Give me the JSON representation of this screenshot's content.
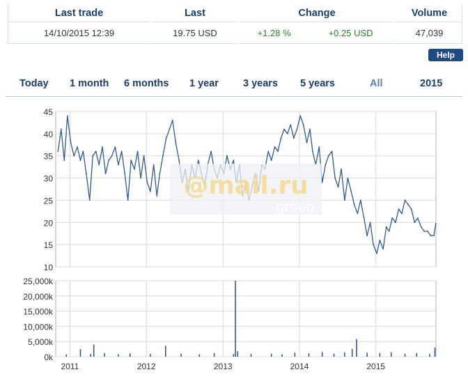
{
  "quote": {
    "headers": {
      "last_trade": "Last trade",
      "last": "Last",
      "change": "Change",
      "volume": "Volume"
    },
    "last_trade": "14/10/2015 12:39",
    "last": "19.75 USD",
    "change_pct": "+1.28 %",
    "change_abs": "+0.25 USD",
    "volume": "47,039"
  },
  "help_label": "Help",
  "periods": [
    "Today",
    "1 month",
    "6 months",
    "1 year",
    "3 years",
    "5 years",
    "All",
    "2015"
  ],
  "active_period": "All",
  "watermark": {
    "brand": "@mail.ru",
    "sub": "group"
  },
  "colors": {
    "line": "#2e5a8c",
    "header": "#1a3d6e",
    "positive": "#1f8a1f",
    "grid": "#d8d8d8"
  },
  "chart_data": [
    {
      "type": "line",
      "title": "",
      "xlabel": "",
      "ylabel": "",
      "x_ticks": [
        "2011",
        "2012",
        "2013",
        "2014",
        "2015"
      ],
      "ylim": [
        10,
        45
      ],
      "y_ticks": [
        "45",
        "40",
        "35",
        "30",
        "25",
        "20",
        "15",
        "10"
      ],
      "grid": true,
      "series": [
        {
          "x": [
            "2010-11-05",
            "2010-11-20",
            "2010-12-05",
            "2010-12-20",
            "2011-01-05",
            "2011-01-20",
            "2011-02-05",
            "2011-02-20",
            "2011-03-05",
            "2011-03-20",
            "2011-04-05",
            "2011-04-20",
            "2011-05-05",
            "2011-05-20",
            "2011-06-05",
            "2011-06-20",
            "2011-07-05",
            "2011-07-20",
            "2011-08-05",
            "2011-08-20",
            "2011-09-05",
            "2011-09-20",
            "2011-10-05",
            "2011-10-20",
            "2011-11-05",
            "2011-11-20",
            "2011-12-05",
            "2011-12-20",
            "2012-01-05",
            "2012-01-20",
            "2012-02-05",
            "2012-02-20",
            "2012-03-05",
            "2012-03-20",
            "2012-04-05",
            "2012-04-20",
            "2012-05-05",
            "2012-05-20",
            "2012-06-05",
            "2012-06-20",
            "2012-07-05",
            "2012-07-20",
            "2012-08-05",
            "2012-08-20",
            "2012-09-05",
            "2012-09-20",
            "2012-10-05",
            "2012-10-20",
            "2012-11-05",
            "2012-11-20",
            "2012-12-05",
            "2012-12-20",
            "2013-01-05",
            "2013-01-20",
            "2013-02-05",
            "2013-02-20",
            "2013-03-05",
            "2013-03-20",
            "2013-04-05",
            "2013-04-20",
            "2013-05-05",
            "2013-05-20",
            "2013-06-05",
            "2013-06-20",
            "2013-07-05",
            "2013-07-20",
            "2013-08-05",
            "2013-08-20",
            "2013-09-05",
            "2013-09-20",
            "2013-10-05",
            "2013-10-20",
            "2013-11-05",
            "2013-11-20",
            "2013-12-05",
            "2013-12-20",
            "2014-01-05",
            "2014-01-20",
            "2014-02-05",
            "2014-02-20",
            "2014-03-05",
            "2014-03-20",
            "2014-04-05",
            "2014-04-20",
            "2014-05-05",
            "2014-05-20",
            "2014-06-05",
            "2014-06-20",
            "2014-07-05",
            "2014-07-20",
            "2014-08-05",
            "2014-08-20",
            "2014-09-05",
            "2014-09-20",
            "2014-10-05",
            "2014-10-20",
            "2014-11-05",
            "2014-11-20",
            "2014-12-05",
            "2014-12-20",
            "2015-01-05",
            "2015-01-20",
            "2015-02-05",
            "2015-02-20",
            "2015-03-05",
            "2015-03-20",
            "2015-04-05",
            "2015-04-20",
            "2015-05-05",
            "2015-05-20",
            "2015-06-05",
            "2015-06-20",
            "2015-07-05",
            "2015-07-20",
            "2015-08-05",
            "2015-08-20",
            "2015-09-05",
            "2015-09-20",
            "2015-10-05",
            "2015-10-14"
          ],
          "values": [
            36,
            41,
            34,
            44,
            38,
            35,
            37,
            34,
            36,
            31,
            25,
            35,
            36,
            33,
            37,
            31,
            34,
            35,
            37,
            33,
            36,
            31,
            25,
            34,
            32,
            36,
            30,
            35,
            29,
            27,
            33,
            26,
            31,
            35,
            39,
            41,
            43,
            38,
            34,
            29,
            32,
            27,
            33,
            30,
            34,
            31,
            28,
            33,
            36,
            32,
            30,
            33,
            31,
            35,
            32,
            34,
            29,
            33,
            26,
            29,
            25,
            28,
            31,
            27,
            33,
            32,
            36,
            34,
            37,
            36,
            39,
            41,
            40,
            42,
            39,
            41,
            44,
            42,
            38,
            41,
            36,
            33,
            37,
            29,
            33,
            35,
            36,
            30,
            28,
            32,
            25,
            30,
            27,
            24,
            22,
            25,
            21,
            17,
            20,
            15,
            13,
            16,
            14,
            19,
            18,
            21,
            20,
            23,
            22,
            25,
            24,
            23,
            20,
            21,
            19,
            18,
            18,
            17,
            17,
            19.75
          ]
        }
      ]
    },
    {
      "type": "bar",
      "title": "",
      "xlabel": "",
      "ylabel": "",
      "ylim": [
        0,
        25000
      ],
      "y_ticks": [
        "25,000k",
        "20,000k",
        "15,000k",
        "10,000k",
        "5,000k",
        "0k"
      ],
      "x_ticks": [
        "2011",
        "2012",
        "2013",
        "2014",
        "2015"
      ],
      "grid": true,
      "series": [
        {
          "x": [
            "2010-12-15",
            "2011-02-20",
            "2011-04-10",
            "2011-04-25",
            "2011-06-15",
            "2011-08-20",
            "2011-10-15",
            "2012-01-20",
            "2012-04-02",
            "2012-06-15",
            "2012-09-10",
            "2012-11-20",
            "2013-02-20",
            "2013-03-01",
            "2013-03-12",
            "2013-05-15",
            "2013-08-20",
            "2013-10-10",
            "2013-12-10",
            "2014-02-15",
            "2014-04-20",
            "2014-06-15",
            "2014-08-05",
            "2014-09-10",
            "2014-10-01",
            "2014-11-20",
            "2015-01-20",
            "2015-03-15",
            "2015-05-20",
            "2015-07-15",
            "2015-09-15",
            "2015-10-10"
          ],
          "values": [
            800,
            2500,
            900,
            4000,
            1200,
            800,
            1100,
            900,
            3600,
            1000,
            800,
            1200,
            900,
            25000,
            1800,
            900,
            1000,
            800,
            1300,
            1100,
            1500,
            1000,
            1400,
            2600,
            5800,
            1300,
            1200,
            1500,
            1000,
            1200,
            900,
            3000
          ]
        }
      ]
    }
  ]
}
